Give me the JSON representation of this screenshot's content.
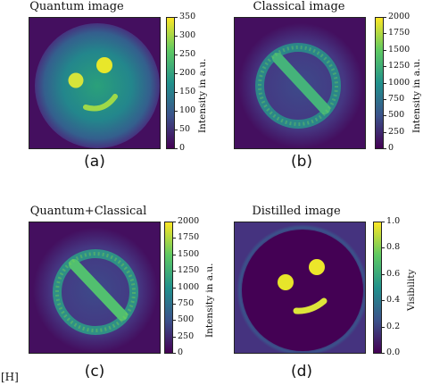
{
  "footnote": "[H]",
  "chart_data": [
    {
      "type": "heatmap",
      "title": "Quantum image",
      "panel_label": "(a)",
      "colorbar": {
        "label": "Intensity in a.u.",
        "range": [
          0,
          350
        ],
        "ticks": [
          "350",
          "300",
          "250",
          "200",
          "150",
          "100",
          "50",
          "0"
        ]
      },
      "colormap": "viridis",
      "content": "smiley face"
    },
    {
      "type": "heatmap",
      "title": "Classical image",
      "panel_label": "(b)",
      "colorbar": {
        "label": "Intensity in a.u.",
        "range": [
          0,
          2000
        ],
        "ticks": [
          "2000",
          "1750",
          "1500",
          "1250",
          "1000",
          "750",
          "500",
          "250",
          "0"
        ]
      },
      "colormap": "viridis",
      "content": "no sign"
    },
    {
      "type": "heatmap",
      "title": "Quantum+Classical",
      "panel_label": "(c)",
      "colorbar": {
        "label": "Intensity in a.u.",
        "range": [
          0,
          2000
        ],
        "ticks": [
          "2000",
          "1750",
          "1500",
          "1250",
          "1000",
          "750",
          "500",
          "250",
          "0"
        ]
      },
      "colormap": "viridis",
      "content": "no sign"
    },
    {
      "type": "heatmap",
      "title": "Distilled image",
      "panel_label": "(d)",
      "colorbar": {
        "label": "Visibility",
        "range": [
          0,
          1
        ],
        "ticks": [
          "1.0",
          "0.8",
          "0.6",
          "0.4",
          "0.2",
          "0.0"
        ]
      },
      "colormap": "viridis",
      "content": "smiley face"
    }
  ]
}
